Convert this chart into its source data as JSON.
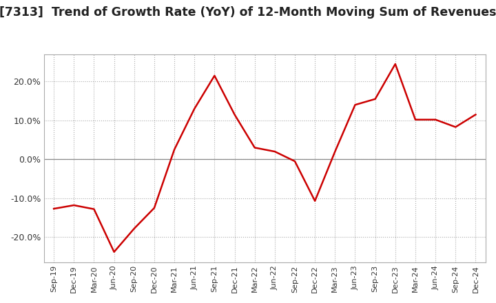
{
  "title": "[7313]  Trend of Growth Rate (YoY) of 12-Month Moving Sum of Revenues",
  "title_fontsize": 12.5,
  "line_color": "#cc0000",
  "background_color": "#ffffff",
  "grid_color": "#aaaaaa",
  "zero_line_color": "#888888",
  "ylim": [
    -0.265,
    0.27
  ],
  "yticks": [
    -0.2,
    -0.1,
    0.0,
    0.1,
    0.2
  ],
  "ytick_labels": [
    "-20.0%",
    "-10.0%",
    "0.0%",
    "10.0%",
    "20.0%"
  ],
  "x_labels": [
    "Sep-19",
    "Dec-19",
    "Mar-20",
    "Jun-20",
    "Sep-20",
    "Dec-20",
    "Mar-21",
    "Jun-21",
    "Sep-21",
    "Dec-21",
    "Mar-22",
    "Jun-22",
    "Sep-22",
    "Dec-22",
    "Mar-23",
    "Jun-23",
    "Sep-23",
    "Dec-23",
    "Mar-24",
    "Jun-24",
    "Sep-24",
    "Dec-24"
  ],
  "values": [
    -0.127,
    -0.118,
    -0.128,
    -0.238,
    -0.178,
    -0.125,
    0.025,
    0.13,
    0.215,
    0.115,
    0.03,
    0.02,
    -0.005,
    -0.107,
    0.02,
    0.14,
    0.155,
    0.245,
    0.102,
    0.102,
    0.083,
    0.115
  ]
}
